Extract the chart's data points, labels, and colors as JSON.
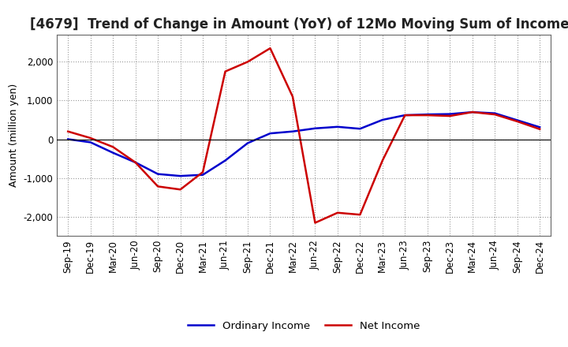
{
  "title": "[4679]  Trend of Change in Amount (YoY) of 12Mo Moving Sum of Incomes",
  "ylabel": "Amount (million yen)",
  "x_labels": [
    "Sep-19",
    "Dec-19",
    "Mar-20",
    "Jun-20",
    "Sep-20",
    "Dec-20",
    "Mar-21",
    "Jun-21",
    "Sep-21",
    "Dec-21",
    "Mar-22",
    "Jun-22",
    "Sep-22",
    "Dec-22",
    "Mar-23",
    "Jun-23",
    "Sep-23",
    "Dec-23",
    "Mar-24",
    "Jun-24",
    "Sep-24",
    "Dec-24"
  ],
  "ordinary_income": [
    0,
    -80,
    -350,
    -600,
    -900,
    -950,
    -920,
    -550,
    -100,
    150,
    200,
    280,
    320,
    270,
    500,
    620,
    640,
    650,
    700,
    670,
    490,
    310
  ],
  "net_income": [
    200,
    30,
    -200,
    -600,
    -1220,
    -1300,
    -850,
    1750,
    2000,
    2350,
    1100,
    -2160,
    -1900,
    -1950,
    -550,
    620,
    620,
    600,
    700,
    640,
    460,
    260
  ],
  "ordinary_color": "#0000cc",
  "net_color": "#cc0000",
  "ylim": [
    -2500,
    2700
  ],
  "yticks": [
    -2000,
    -1000,
    0,
    1000,
    2000
  ],
  "background_color": "#ffffff",
  "plot_bg_color": "#ffffff",
  "grid_color": "#999999",
  "line_width": 1.8,
  "legend_ordinary": "Ordinary Income",
  "legend_net": "Net Income",
  "title_fontsize": 12,
  "axis_label_fontsize": 9,
  "tick_fontsize": 8.5
}
